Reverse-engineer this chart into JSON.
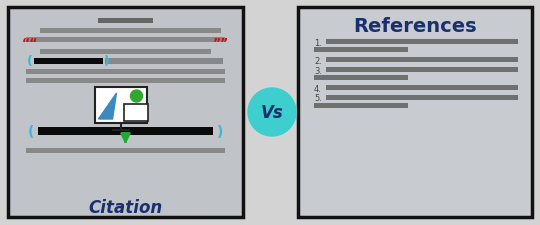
{
  "bg_color": "#d3d3d3",
  "left_panel_bg": "#c0c4c8",
  "left_panel_border": "#111111",
  "right_panel_bg": "#c8ccd0",
  "right_panel_border": "#111111",
  "vs_circle_color": "#3ecece",
  "vs_text": "Vs",
  "vs_text_color": "#1a2f6e",
  "citation_text": "Citation",
  "citation_color": "#1a2f6e",
  "references_text": "References",
  "references_color": "#1a2f6e",
  "line_color": "#888888",
  "dark_line_color": "#666666",
  "black_bar_color": "#0a0a0a",
  "red_quote_color": "#cc1111",
  "cyan_bracket_color": "#38b8d8",
  "green_arrow_color": "#1faa33",
  "ref_line_color": "#707070"
}
